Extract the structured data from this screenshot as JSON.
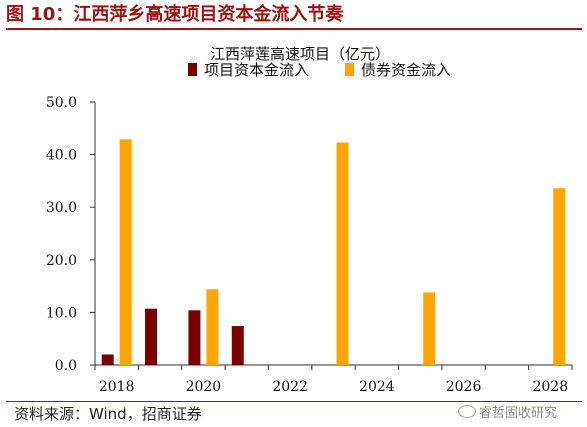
{
  "figure": {
    "title": "图 10：江西萍乡高速项目资本金流入节奏",
    "source": "资料来源：Wind，招商证券",
    "watermark": "睿哲固收研究"
  },
  "colors": {
    "title_accent": "#a01010",
    "capital": "#7a0000",
    "bond": "#ffa500"
  },
  "chart_data": {
    "type": "bar",
    "title": "江西萍莲高速项目（亿元）",
    "xlabel": "",
    "ylabel": "",
    "ylim": [
      0,
      50
    ],
    "yticks": [
      0,
      10,
      20,
      30,
      40,
      50
    ],
    "ytick_labels": [
      "0.0",
      "10.0",
      "20.0",
      "30.0",
      "40.0",
      "50.0"
    ],
    "categories": [
      "2018",
      "2019",
      "2020",
      "2021",
      "2022",
      "2023",
      "2024",
      "2025",
      "2026",
      "2027",
      "2028"
    ],
    "xtick_labels": [
      "2018",
      "2020",
      "2022",
      "2024",
      "2026",
      "2028"
    ],
    "legend_position": "top-center",
    "grid": false,
    "series": [
      {
        "name": "项目资本金流入",
        "color": "#7a0000",
        "values": [
          2.0,
          10.7,
          10.4,
          7.4,
          null,
          null,
          null,
          null,
          null,
          null,
          null
        ]
      },
      {
        "name": "债券资金流入",
        "color": "#ffa500",
        "values": [
          42.9,
          null,
          14.4,
          null,
          null,
          42.3,
          null,
          13.8,
          null,
          null,
          33.6
        ]
      }
    ]
  }
}
